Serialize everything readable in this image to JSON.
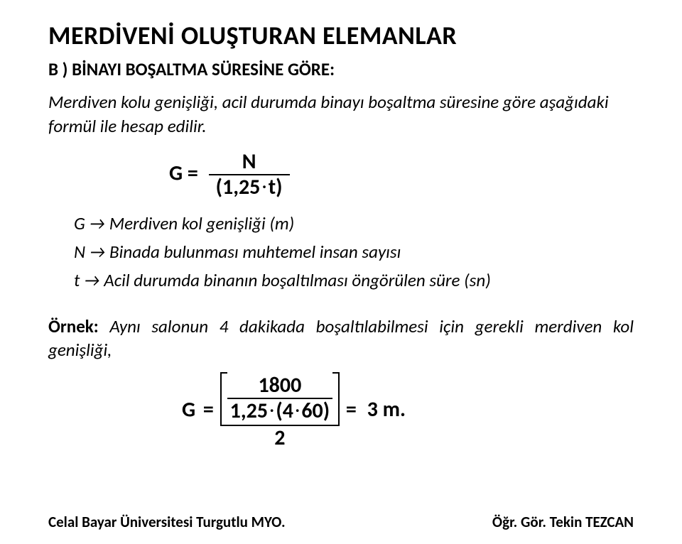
{
  "title": "MERDİVENİ OLUŞTURAN ELEMANLAR",
  "subtitle": "B ) BİNAYI BOŞALTMA SÜRESİNE GÖRE:",
  "body": "Merdiven kolu genişliği, acil durumda binayı boşaltma süresine göre aşağıdaki formül ile hesap edilir.",
  "formula1": {
    "lhs": "G",
    "numerator": "N",
    "den_left": "1,25",
    "den_right": "t"
  },
  "defs": {
    "g": "G → Merdiven kol genişliği (m)",
    "n": "N → Binada bulunması muhtemel insan sayısı",
    "t": " t → Acil durumda binanın boşaltılması öngörülen süre (sn)"
  },
  "example": {
    "label": "Örnek:",
    "text": " Aynı salonun 4 dakikada boşaltılabilmesi için gerekli merdiven kol genişliği,"
  },
  "formula2": {
    "lhs": "G",
    "inner_num": "1800",
    "inner_den_left": "1,25",
    "inner_den_mid": "4",
    "inner_den_right": "60",
    "outer_den": "2",
    "result": "3 m."
  },
  "footer": {
    "left": "Celal Bayar Üniversitesi Turgutlu MYO.",
    "right": "Öğr. Gör. Tekin TEZCAN"
  },
  "colors": {
    "text": "#000000",
    "bg": "#ffffff"
  }
}
